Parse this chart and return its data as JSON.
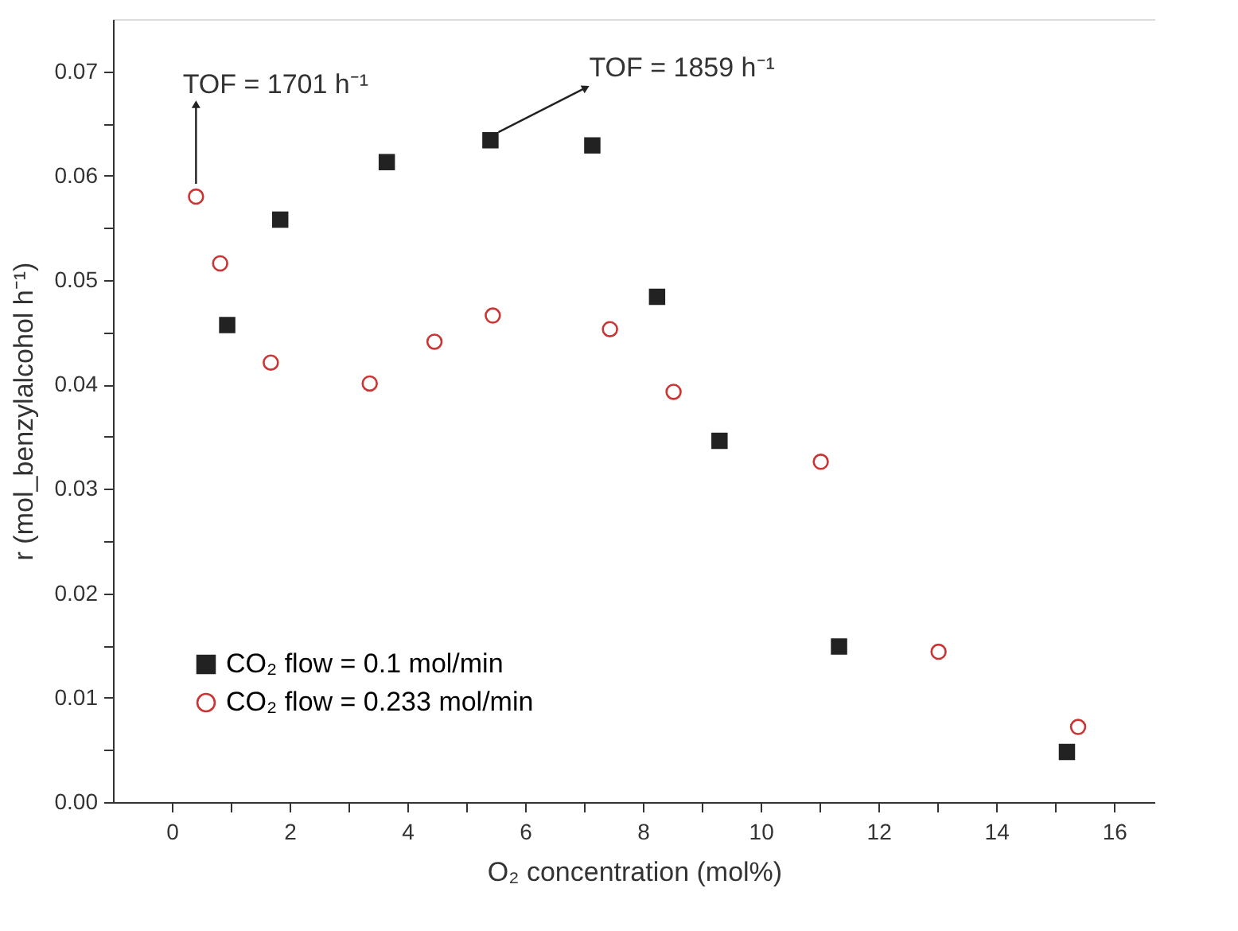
{
  "chart_data": {
    "type": "scatter",
    "xlabel": "O₂ concentration (mol%)",
    "ylabel": "r (mol_benzylalcohol h⁻¹)",
    "series": [
      {
        "name": "CO₂ flow = 0.1 mol/min",
        "color": "#222222",
        "marker": "square",
        "x": [
          0.94,
          1.84,
          3.65,
          5.41,
          7.14,
          8.24,
          9.3,
          11.33,
          15.2
        ],
        "values": [
          0.0457,
          0.0558,
          0.0613,
          0.0634,
          0.0629,
          0.0484,
          0.0346,
          0.0149,
          0.0048
        ]
      },
      {
        "name": "CO₂ flow = 0.233 mol/min",
        "color": "#cc3333",
        "marker": "circle",
        "x": [
          0.41,
          0.82,
          1.68,
          3.36,
          4.46,
          5.45,
          7.44,
          8.52,
          11.02,
          13.02,
          15.39
        ],
        "values": [
          0.058,
          0.0516,
          0.0421,
          0.0401,
          0.0441,
          0.0466,
          0.0453,
          0.0393,
          0.0326,
          0.0144,
          0.0072
        ]
      }
    ],
    "annotations": [
      {
        "text": "TOF = 1701 h⁻¹",
        "x": 0.41,
        "y": 0.058
      },
      {
        "text": "TOF = 1859 h⁻¹",
        "x": 5.41,
        "y": 0.0634
      }
    ],
    "xlim": [
      -1,
      16.7
    ],
    "xticks": [
      0,
      {
        "value": 1,
        "label": null
      },
      2,
      {
        "value": 3,
        "label": null
      },
      4,
      {
        "value": 5,
        "label": null
      },
      6,
      {
        "value": 7,
        "label": null
      },
      8,
      {
        "value": 9,
        "label": null
      },
      10,
      {
        "value": 11,
        "label": null
      },
      12,
      {
        "value": 13,
        "label": null
      },
      14,
      {
        "value": 15,
        "label": null
      },
      16
    ],
    "ylim": [
      0,
      0.075
    ],
    "yticks": [
      {
        "value": 0,
        "label": "0.00"
      },
      {
        "value": 0.005,
        "label": null
      },
      {
        "value": 0.01,
        "label": "0.01"
      },
      {
        "value": 0.015,
        "label": null
      },
      {
        "value": 0.02,
        "label": "0.02"
      },
      {
        "value": 0.025,
        "label": null
      },
      {
        "value": 0.03,
        "label": "0.03"
      },
      {
        "value": 0.035,
        "label": null
      },
      {
        "value": 0.04,
        "label": "0.04"
      },
      {
        "value": 0.045,
        "label": null
      },
      {
        "value": 0.05,
        "label": "0.05"
      },
      {
        "value": 0.055,
        "label": null
      },
      {
        "value": 0.06,
        "label": "0.06"
      },
      {
        "value": 0.065,
        "label": null
      },
      {
        "value": 0.07,
        "label": "0.07"
      }
    ],
    "grid": false,
    "legend": "bottom left"
  }
}
